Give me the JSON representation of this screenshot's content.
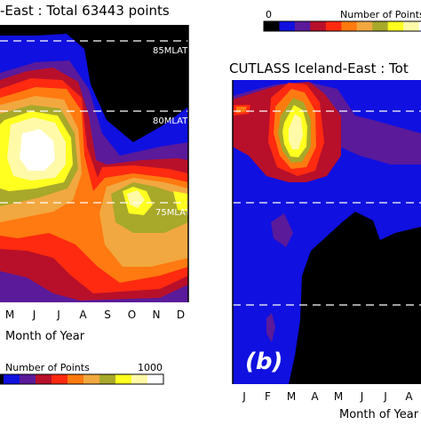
{
  "chart_data": [
    {
      "type": "heatmap",
      "panel": "a",
      "title": "-East : Total 63443 points",
      "xlabel": "Month of Year",
      "x_ticks": [
        "M",
        "J",
        "J",
        "A",
        "S",
        "O",
        "N",
        "D"
      ],
      "lat_lines": [
        "85MLAT",
        "80MLAT",
        "75MLAT"
      ],
      "colorbar": {
        "label": "Number of Points",
        "min": "",
        "max": "1000"
      },
      "palette": [
        "#000000",
        "#1010e0",
        "#5a1a9a",
        "#b8102a",
        "#ff2a10",
        "#ff7a10",
        "#f2a840",
        "#a8a82a",
        "#ffff20",
        "#fffaa8",
        "#ffffff"
      ]
    },
    {
      "type": "heatmap",
      "panel": "b",
      "title": "CUTLASS Iceland-East : Tot",
      "xlabel": "Month of Year",
      "x_ticks": [
        "J",
        "F",
        "M",
        "A",
        "M",
        "J",
        "J",
        "A"
      ],
      "panel_label": "(b)",
      "colorbar": {
        "label": "Number of Points",
        "min": "0",
        "max": ""
      },
      "palette": [
        "#000000",
        "#1010e0",
        "#5a1a9a",
        "#b8102a",
        "#ff2a10",
        "#ff7a10",
        "#f2a840",
        "#a8a82a",
        "#ffff20",
        "#fffaa8",
        "#ffffff"
      ]
    }
  ]
}
